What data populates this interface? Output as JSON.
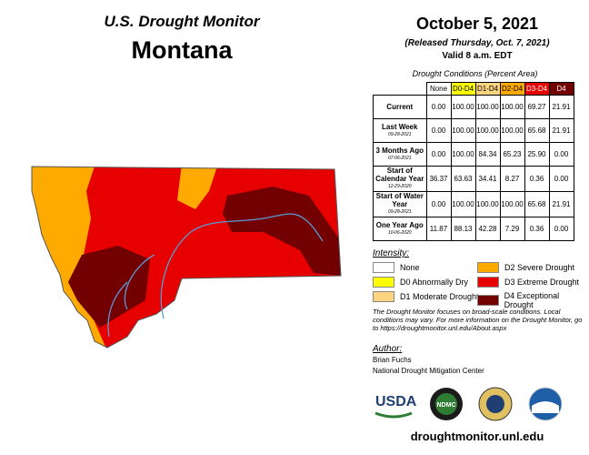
{
  "header": {
    "agency": "U.S. Drought Monitor",
    "state": "Montana"
  },
  "release": {
    "date": "October 5, 2021",
    "released": "(Released Thursday, Oct. 7, 2021)",
    "valid": "Valid 8 a.m. EDT"
  },
  "table": {
    "caption": "Drought Conditions (Percent Area)",
    "columns": [
      {
        "label": "None",
        "color": "#ffffff",
        "text": "#000000"
      },
      {
        "label": "D0-D4",
        "color": "#ffff00",
        "text": "#000000"
      },
      {
        "label": "D1-D4",
        "color": "#fcd37f",
        "text": "#000000"
      },
      {
        "label": "D2-D4",
        "color": "#ffaa00",
        "text": "#000000"
      },
      {
        "label": "D3-D4",
        "color": "#e60000",
        "text": "#ffffff"
      },
      {
        "label": "D4",
        "color": "#730000",
        "text": "#ffffff"
      }
    ],
    "rows": [
      {
        "label": "Current",
        "values": [
          "0.00",
          "100.00",
          "100.00",
          "100.00",
          "69.27",
          "21.91"
        ]
      },
      {
        "label": "Last Week",
        "date": "09-28-2021",
        "values": [
          "0.00",
          "100.00",
          "100.00",
          "100.00",
          "65.68",
          "21.91"
        ]
      },
      {
        "label": "3 Months Ago",
        "date": "07-06-2021",
        "values": [
          "0.00",
          "100.00",
          "84.34",
          "65.23",
          "25.90",
          "0.00"
        ]
      },
      {
        "label": "Start of Calendar Year",
        "date": "12-29-2020",
        "values": [
          "36.37",
          "63.63",
          "34.41",
          "8.27",
          "0.36",
          "0.00"
        ]
      },
      {
        "label": "Start of Water Year",
        "date": "09-28-2021",
        "values": [
          "0.00",
          "100.00",
          "100.00",
          "100.00",
          "65.68",
          "21.91"
        ]
      },
      {
        "label": "One Year Ago",
        "date": "10-06-2020",
        "values": [
          "11.87",
          "88.13",
          "42.28",
          "7.29",
          "0.36",
          "0.00"
        ]
      }
    ]
  },
  "legend": {
    "title": "Intensity:",
    "items": [
      {
        "label": "None",
        "color": "#ffffff"
      },
      {
        "label": "D2 Severe Drought",
        "color": "#ffaa00"
      },
      {
        "label": "D0 Abnormally Dry",
        "color": "#ffff00"
      },
      {
        "label": "D3 Extreme Drought",
        "color": "#e60000"
      },
      {
        "label": "D1 Moderate Drought",
        "color": "#fcd37f"
      },
      {
        "label": "D4 Exceptional Drought",
        "color": "#730000"
      }
    ]
  },
  "note": "The Drought Monitor focuses on broad-scale conditions. Local conditions may vary. For more information on the Drought Monitor, go to https://droughtmonitor.unl.edu/About.aspx",
  "author": {
    "label": "Author:",
    "name": "Brian Fuchs",
    "org": "National Drought Mitigation Center"
  },
  "logos": {
    "usda": "USDA",
    "ndmc": "NDMC"
  },
  "url": "droughtmonitor.unl.edu"
}
